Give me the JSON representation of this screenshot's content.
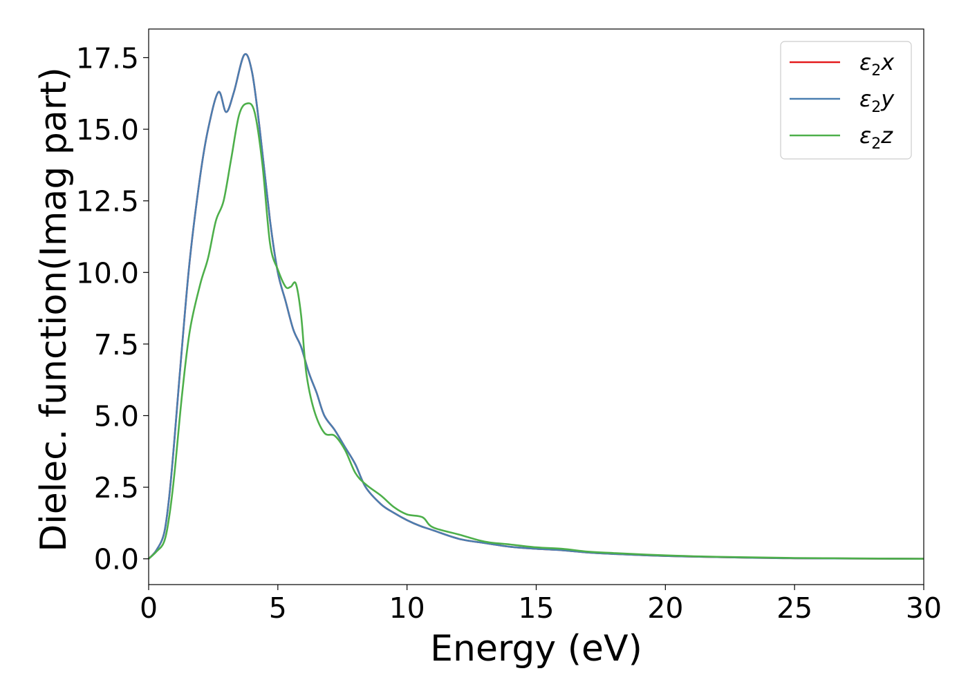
{
  "chart_data": {
    "type": "line",
    "title": "",
    "xlabel": "Energy (eV)",
    "ylabel": "Dielec. function(Imag part)",
    "xlim": [
      0,
      30
    ],
    "ylim": [
      -0.9,
      18.5
    ],
    "xticks": [
      0,
      5,
      10,
      15,
      20,
      25,
      30
    ],
    "xtick_labels": [
      "0",
      "5",
      "10",
      "15",
      "20",
      "25",
      "30"
    ],
    "yticks": [
      0.0,
      2.5,
      5.0,
      7.5,
      10.0,
      12.5,
      15.0,
      17.5
    ],
    "ytick_labels": [
      "0.0",
      "2.5",
      "5.0",
      "7.5",
      "10.0",
      "12.5",
      "15.0",
      "17.5"
    ],
    "grid": false,
    "legend_position": "top-right",
    "series": [
      {
        "name": "ε₂x",
        "legend_base": "ε",
        "legend_sub": "2",
        "legend_suffix": "x",
        "color": "#e41a1c",
        "x": [
          0,
          0.3,
          0.6,
          0.8,
          1.0,
          1.3,
          1.6,
          2.0,
          2.3,
          2.7,
          3.0,
          3.3,
          3.7,
          4.0,
          4.3,
          4.7,
          5.0,
          5.3,
          5.6,
          5.9,
          6.2,
          6.5,
          6.8,
          7.2,
          7.6,
          8.0,
          8.4,
          9.0,
          9.5,
          10.0,
          10.5,
          11.0,
          12.0,
          13.0,
          14.0,
          15.0,
          16.0,
          17.0,
          18.0,
          20.0,
          22.0,
          25.0,
          30.0
        ],
        "y": [
          0.0,
          0.3,
          0.9,
          2.2,
          4.2,
          7.5,
          10.5,
          13.4,
          15.0,
          16.3,
          15.6,
          16.3,
          17.6,
          17.0,
          15.0,
          11.8,
          10.0,
          9.0,
          8.0,
          7.4,
          6.5,
          5.8,
          5.0,
          4.5,
          3.9,
          3.3,
          2.5,
          1.9,
          1.6,
          1.35,
          1.15,
          1.0,
          0.7,
          0.55,
          0.42,
          0.35,
          0.3,
          0.22,
          0.17,
          0.1,
          0.06,
          0.02,
          0.0
        ]
      },
      {
        "name": "ε₂y",
        "legend_base": "ε",
        "legend_sub": "2",
        "legend_suffix": "y",
        "color": "#4a7eb0",
        "x": [
          0,
          0.3,
          0.6,
          0.8,
          1.0,
          1.3,
          1.6,
          2.0,
          2.3,
          2.7,
          3.0,
          3.3,
          3.7,
          4.0,
          4.3,
          4.7,
          5.0,
          5.3,
          5.6,
          5.9,
          6.2,
          6.5,
          6.8,
          7.2,
          7.6,
          8.0,
          8.4,
          9.0,
          9.5,
          10.0,
          10.5,
          11.0,
          12.0,
          13.0,
          14.0,
          15.0,
          16.0,
          17.0,
          18.0,
          20.0,
          22.0,
          25.0,
          30.0
        ],
        "y": [
          0.0,
          0.3,
          0.9,
          2.2,
          4.2,
          7.5,
          10.5,
          13.4,
          15.0,
          16.3,
          15.6,
          16.3,
          17.6,
          17.0,
          15.0,
          11.8,
          10.0,
          9.0,
          8.0,
          7.4,
          6.5,
          5.8,
          5.0,
          4.5,
          3.9,
          3.3,
          2.5,
          1.9,
          1.6,
          1.35,
          1.15,
          1.0,
          0.7,
          0.55,
          0.42,
          0.35,
          0.3,
          0.22,
          0.17,
          0.1,
          0.06,
          0.02,
          0.0
        ]
      },
      {
        "name": "ε₂z",
        "legend_base": "ε",
        "legend_sub": "2",
        "legend_suffix": "z",
        "color": "#4daf4a",
        "x": [
          0,
          0.3,
          0.6,
          0.8,
          1.0,
          1.3,
          1.6,
          2.0,
          2.3,
          2.6,
          2.9,
          3.2,
          3.5,
          3.8,
          4.1,
          4.4,
          4.7,
          5.0,
          5.3,
          5.5,
          5.7,
          5.9,
          6.1,
          6.4,
          6.8,
          7.2,
          7.6,
          8.0,
          8.4,
          9.0,
          9.5,
          10.0,
          10.6,
          11.0,
          12.0,
          13.0,
          14.0,
          15.0,
          16.0,
          17.0,
          18.0,
          20.0,
          22.0,
          25.0,
          30.0
        ],
        "y": [
          0.0,
          0.25,
          0.6,
          1.5,
          3.0,
          5.8,
          8.0,
          9.6,
          10.5,
          11.8,
          12.5,
          14.0,
          15.5,
          15.9,
          15.6,
          13.8,
          11.0,
          10.1,
          9.5,
          9.5,
          9.6,
          8.5,
          6.5,
          5.2,
          4.4,
          4.3,
          3.8,
          3.0,
          2.6,
          2.2,
          1.8,
          1.55,
          1.45,
          1.1,
          0.85,
          0.6,
          0.5,
          0.4,
          0.35,
          0.25,
          0.2,
          0.12,
          0.07,
          0.03,
          0.0
        ]
      }
    ]
  }
}
